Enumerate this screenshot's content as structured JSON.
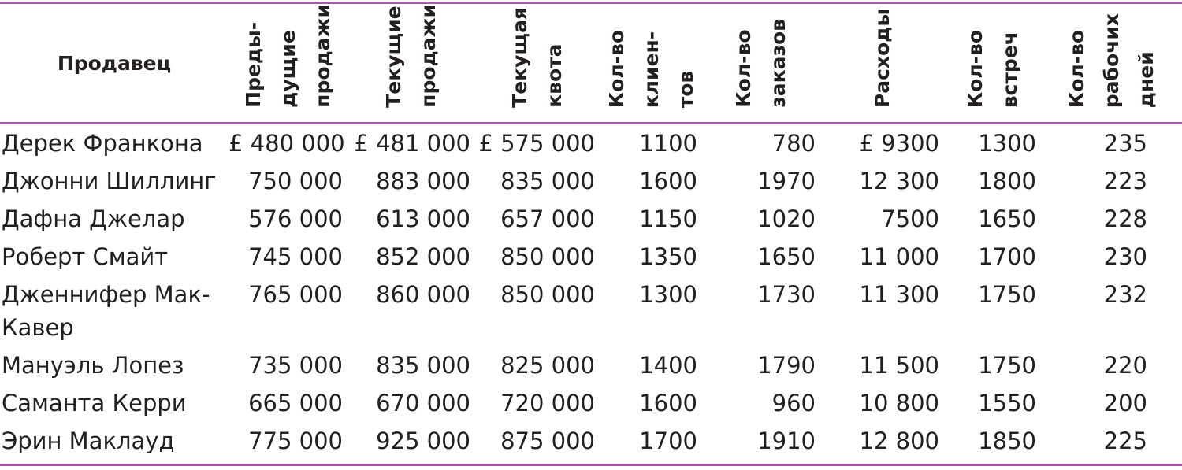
{
  "table": {
    "header": [
      [
        "Продавец"
      ],
      [
        "Преды-",
        "дущие",
        "продажи"
      ],
      [
        "Текущие",
        "продажи"
      ],
      [
        "Текущая",
        "квота"
      ],
      [
        "Кол-во",
        "клиен-",
        "тов"
      ],
      [
        "Кол-во",
        "заказов"
      ],
      [
        "Расходы"
      ],
      [
        "Кол-во",
        "встреч"
      ],
      [
        "Кол-во",
        "рабочих",
        "дней"
      ]
    ],
    "rows": [
      [
        "Дерек Франкона",
        "£ 480 000",
        "£ 481 000",
        "£ 575 000",
        "1100",
        "780",
        "£ 9300",
        "1300",
        "235"
      ],
      [
        "Джонни Шиллинг",
        "750 000",
        "883 000",
        "835 000",
        "1600",
        "1970",
        "12 300",
        "1800",
        "223"
      ],
      [
        "Дафна Джелар",
        "576 000",
        "613 000",
        "657 000",
        "1150",
        "1020",
        "7500",
        "1650",
        "228"
      ],
      [
        "Роберт Смайт",
        "745 000",
        "852 000",
        "850 000",
        "1350",
        "1650",
        "11 000",
        "1700",
        "230"
      ],
      [
        "Дженнифер Мак-Кавер",
        "765 000",
        "860 000",
        "850 000",
        "1300",
        "1730",
        "11 300",
        "1750",
        "232"
      ],
      [
        "Мануэль Лопез",
        "735 000",
        "835 000",
        "825 000",
        "1400",
        "1790",
        "11 500",
        "1750",
        "220"
      ],
      [
        "Саманта Керри",
        "665 000",
        "670 000",
        "720 000",
        "1600",
        "960",
        "10 800",
        "1550",
        "200"
      ],
      [
        "Эрин Маклауд",
        "775 000",
        "925 000",
        "875 000",
        "1700",
        "1910",
        "12 800",
        "1850",
        "225"
      ]
    ]
  }
}
